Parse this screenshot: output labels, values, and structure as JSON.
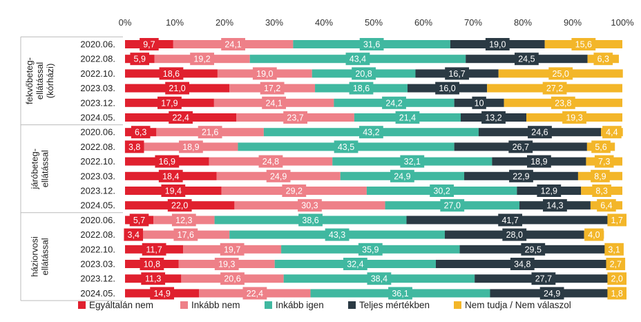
{
  "chart_data": {
    "type": "bar",
    "orientation": "horizontal",
    "stacked": "percent",
    "xlim": [
      0,
      100
    ],
    "x_ticks": [
      "0%",
      "10%",
      "20%",
      "30%",
      "40%",
      "50%",
      "60%",
      "70%",
      "80%",
      "90%",
      "100%"
    ],
    "legend_position": "bottom",
    "series": [
      {
        "name": "Egyáltalán nem",
        "color": "#e0202e"
      },
      {
        "name": "Inkább nem",
        "color": "#ee8088"
      },
      {
        "name": "Inkább igen",
        "color": "#40b8a0"
      },
      {
        "name": "Teljes mértékben",
        "color": "#2b3a44"
      },
      {
        "name": "Nem tudja / Nem válaszol",
        "color": "#f3b629"
      }
    ],
    "groups": [
      {
        "label_lines": [
          "fekvőbeteg-",
          "ellátással",
          "(kórházi)"
        ],
        "rows": [
          {
            "label": "2020.06.",
            "values": [
              9.7,
              24.1,
              31.6,
              19.0,
              15.6
            ],
            "labels": [
              "9,7",
              "24,1",
              "31,6",
              "19,0",
              "15,6"
            ]
          },
          {
            "label": "2022.08.",
            "values": [
              5.9,
              19.2,
              43.4,
              24.5,
              6.3
            ],
            "labels": [
              "5,9",
              "19,2",
              "43,4",
              "24,5",
              "6,3"
            ]
          },
          {
            "label": "2022.10.",
            "values": [
              18.6,
              19.0,
              20.8,
              16.7,
              25.0
            ],
            "labels": [
              "18,6",
              "19,0",
              "20,8",
              "16,7",
              "25,0"
            ]
          },
          {
            "label": "2023.03.",
            "values": [
              21.0,
              17.2,
              18.6,
              16.0,
              27.2
            ],
            "labels": [
              "21,0",
              "17,2",
              "18,6",
              "16,0",
              "27,2"
            ]
          },
          {
            "label": "2023.12.",
            "values": [
              17.9,
              24.1,
              24.2,
              10,
              23.8
            ],
            "labels": [
              "17,9",
              "24,1",
              "24,2",
              "10",
              "23,8"
            ]
          },
          {
            "label": "2024.05.",
            "values": [
              22.4,
              23.7,
              21.4,
              13.2,
              19.3
            ],
            "labels": [
              "22,4",
              "23,7",
              "21,4",
              "13,2",
              "19,3"
            ]
          }
        ]
      },
      {
        "label_lines": [
          "járóbeteg-",
          "ellátással"
        ],
        "rows": [
          {
            "label": "2020.06.",
            "values": [
              6.3,
              21.6,
              43.2,
              24.6,
              4.4
            ],
            "labels": [
              "6,3",
              "21,6",
              "43,2",
              "24,6",
              "4,4"
            ]
          },
          {
            "label": "2022.08.",
            "values": [
              3.8,
              18.9,
              43.5,
              26.7,
              5.6
            ],
            "labels": [
              "3,8",
              "18,9",
              "43,5",
              "26,7",
              "5,6"
            ]
          },
          {
            "label": "2022.10.",
            "values": [
              16.9,
              24.8,
              32.1,
              18.9,
              7.3
            ],
            "labels": [
              "16,9",
              "24,8",
              "32,1",
              "18,9",
              "7,3"
            ]
          },
          {
            "label": "2023.03.",
            "values": [
              18.4,
              24.9,
              24.9,
              22.9,
              8.9
            ],
            "labels": [
              "18,4",
              "24,9",
              "24,9",
              "22,9",
              "8,9"
            ]
          },
          {
            "label": "2023.12.",
            "values": [
              19.4,
              29.2,
              30.2,
              12.9,
              8.3
            ],
            "labels": [
              "19,4",
              "29,2",
              "30,2",
              "12,9",
              "8,3"
            ]
          },
          {
            "label": "2024.05.",
            "values": [
              22.0,
              30.3,
              27.0,
              14.3,
              6.4
            ],
            "labels": [
              "22,0",
              "30,3",
              "27,0",
              "14,3",
              "6,4"
            ]
          }
        ]
      },
      {
        "label_lines": [
          "háziorvosi",
          "ellátással"
        ],
        "rows": [
          {
            "label": "2020.06.",
            "values": [
              5.7,
              12.3,
              38.6,
              41.7,
              1.7
            ],
            "labels": [
              "5,7",
              "12,3",
              "38,6",
              "41,7",
              "1,7"
            ]
          },
          {
            "label": "2022.08.",
            "values": [
              3.4,
              17.6,
              43.3,
              28.0,
              4.0
            ],
            "labels": [
              "3,4",
              "17,6",
              "43,3",
              "28,0",
              "4,0"
            ]
          },
          {
            "label": "2022.10.",
            "values": [
              11.7,
              19.7,
              35.9,
              29.5,
              3.1
            ],
            "labels": [
              "11,7",
              "19,7",
              "35,9",
              "29,5",
              "3,1"
            ]
          },
          {
            "label": "2023.03.",
            "values": [
              10.8,
              19.3,
              32.4,
              34.8,
              2.7
            ],
            "labels": [
              "10,8",
              "19,3",
              "32,4",
              "34,8",
              "2,7"
            ]
          },
          {
            "label": "2023.12.",
            "values": [
              11.3,
              20.6,
              38.4,
              27.7,
              2.0
            ],
            "labels": [
              "11,3",
              "20,6",
              "38,4",
              "27,7",
              "2,0"
            ]
          },
          {
            "label": "2024.05.",
            "values": [
              14.9,
              22.4,
              36.1,
              24.9,
              1.8
            ],
            "labels": [
              "14,9",
              "22,4",
              "36,1",
              "24,9",
              "1,8"
            ]
          }
        ]
      }
    ]
  }
}
